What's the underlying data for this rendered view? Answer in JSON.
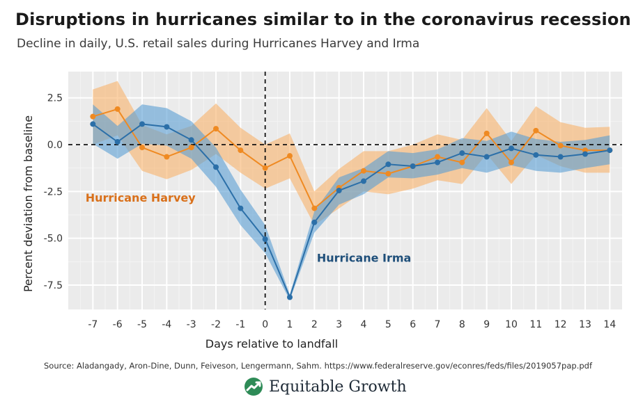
{
  "header": {
    "title": "Disruptions in hurricanes similar to in the coronavirus recession",
    "subtitle": "Decline in daily, U.S. retail sales during Hurricanes Harvey and Irma"
  },
  "chart_data": {
    "type": "line",
    "xlabel": "Days relative to landfall",
    "ylabel": "Percent deviation from baseline",
    "x": [
      -7,
      -6,
      -5,
      -4,
      -3,
      -2,
      -1,
      0,
      1,
      2,
      3,
      4,
      5,
      6,
      7,
      8,
      9,
      10,
      11,
      12,
      13,
      14
    ],
    "x_ticks": [
      "-7",
      "-6",
      "-5",
      "-4",
      "-3",
      "-2",
      "-1",
      "0",
      "1",
      "2",
      "3",
      "4",
      "5",
      "6",
      "7",
      "8",
      "9",
      "10",
      "11",
      "12",
      "13",
      "14"
    ],
    "y_ticks": [
      "2.5",
      "0.0",
      "-2.5",
      "-5.0",
      "-7.5"
    ],
    "xlim": [
      -8,
      14.5
    ],
    "ylim": [
      -8.8,
      3.9
    ],
    "grid": true,
    "series": [
      {
        "name": "Hurricane Harvey",
        "color": "#ef8a22",
        "band_color": "#f9b26a",
        "values": [
          1.5,
          1.9,
          -0.15,
          -0.65,
          -0.15,
          0.85,
          -0.3,
          -1.25,
          -0.6,
          -3.4,
          -2.3,
          -1.4,
          -1.55,
          -1.15,
          -0.65,
          -0.95,
          0.6,
          -0.95,
          0.75,
          -0.05,
          -0.3,
          -0.3
        ],
        "lower": [
          0.0,
          0.5,
          -1.4,
          -1.85,
          -1.35,
          -0.5,
          -1.5,
          -2.35,
          -1.8,
          -4.3,
          -3.4,
          -2.5,
          -2.65,
          -2.35,
          -1.9,
          -2.1,
          -0.5,
          -2.1,
          -0.55,
          -1.15,
          -1.5,
          -1.5
        ],
        "upper": [
          2.95,
          3.4,
          1.05,
          0.55,
          1.0,
          2.2,
          0.9,
          0.0,
          0.6,
          -2.5,
          -1.3,
          -0.35,
          -0.35,
          0.0,
          0.55,
          0.25,
          1.95,
          0.2,
          2.05,
          1.2,
          0.9,
          0.95
        ]
      },
      {
        "name": "Hurricane Irma",
        "color": "#2b6fa8",
        "band_color": "#5a9fd4",
        "values": [
          1.1,
          0.15,
          1.1,
          0.95,
          0.25,
          -1.2,
          -3.4,
          -5.05,
          -8.15,
          -4.15,
          -2.45,
          -1.95,
          -1.05,
          -1.15,
          -0.95,
          -0.45,
          -0.65,
          -0.2,
          -0.55,
          -0.65,
          -0.5,
          -0.3
        ],
        "lower": [
          0.05,
          -0.75,
          0.05,
          -0.05,
          -0.75,
          -2.25,
          -4.3,
          -5.8,
          -8.3,
          -4.7,
          -3.2,
          -2.65,
          -1.75,
          -1.8,
          -1.6,
          -1.25,
          -1.5,
          -1.1,
          -1.4,
          -1.5,
          -1.25,
          -1.05
        ],
        "upper": [
          2.15,
          1.0,
          2.15,
          1.95,
          1.25,
          -0.15,
          -2.4,
          -4.3,
          -8.0,
          -3.55,
          -1.75,
          -1.25,
          -0.35,
          -0.45,
          -0.25,
          0.35,
          0.2,
          0.7,
          0.3,
          0.15,
          0.25,
          0.5
        ]
      }
    ],
    "annotations": [
      {
        "text": "Hurricane Harvey",
        "color": "#d9701a",
        "x": -7.3,
        "y": -3.05
      },
      {
        "text": "Hurricane Irma",
        "color": "#1f4f7a",
        "x": 2.1,
        "y": -6.25
      }
    ]
  },
  "footer": {
    "source": "Source: Aladangady, Aron-Dine, Dunn, Feiveson, Lengermann, Sahm. https://www.federalreserve.gov/econres/feds/files/2019057pap.pdf",
    "logo_text": "Equitable Growth"
  }
}
